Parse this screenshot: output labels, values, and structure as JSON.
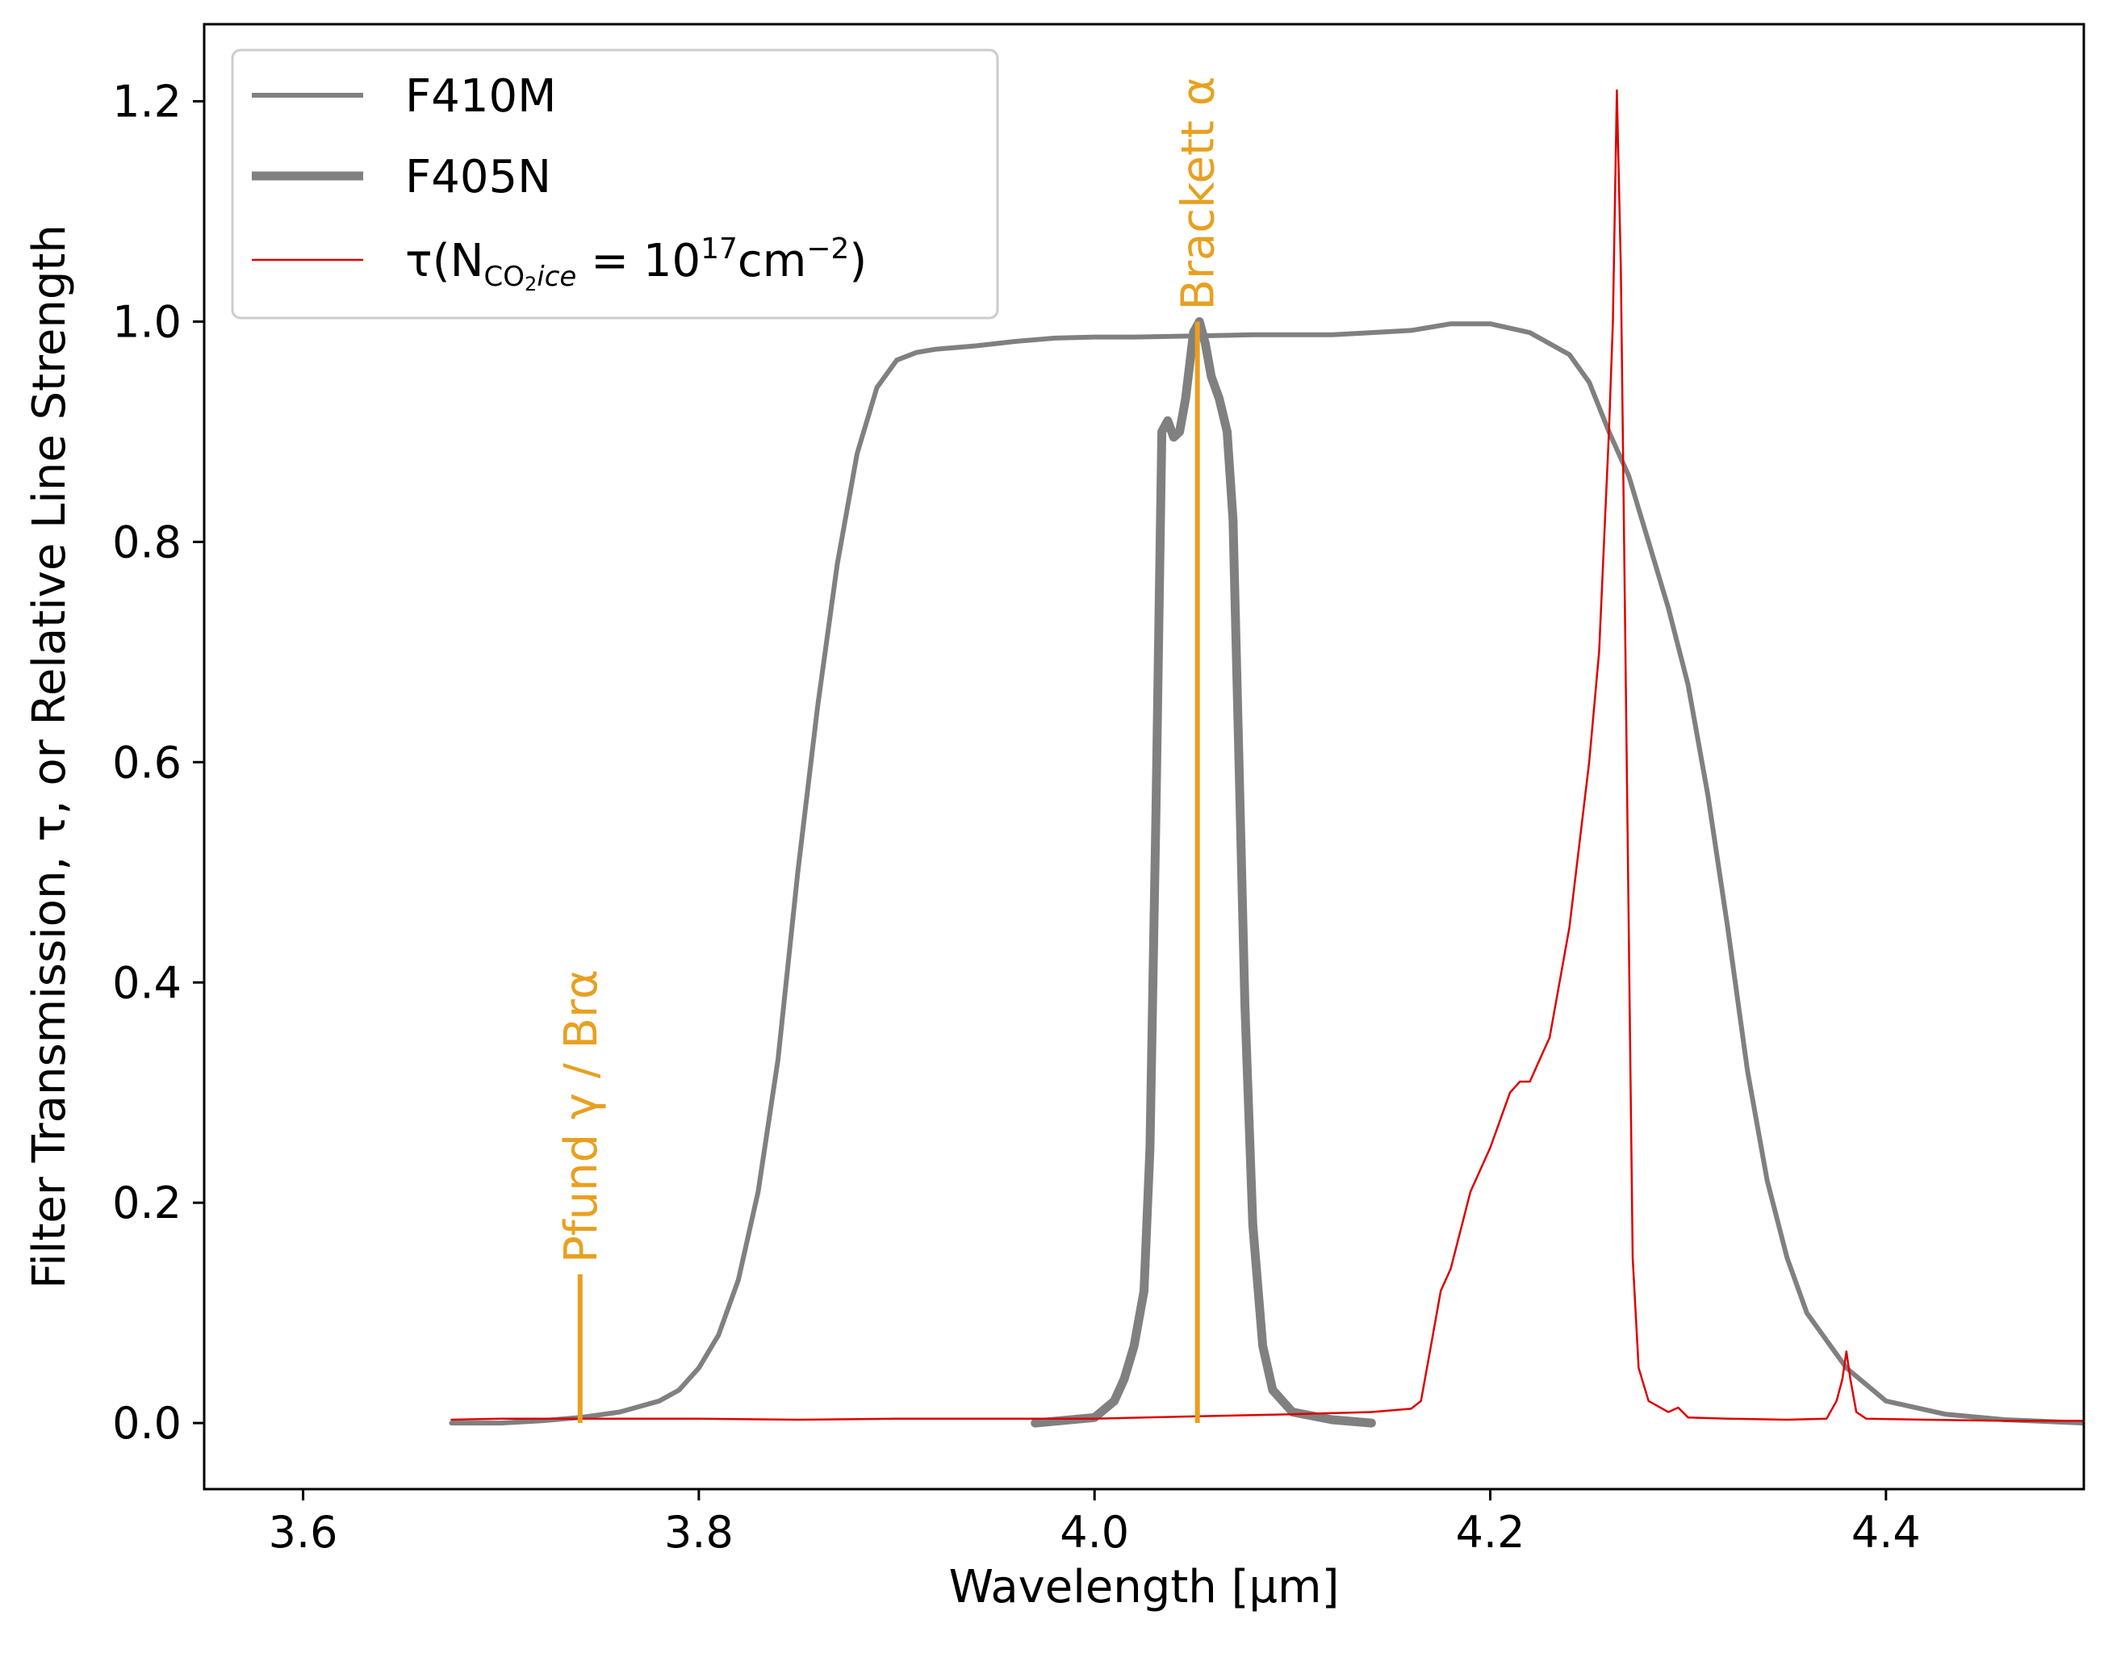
{
  "chart_data": {
    "type": "line",
    "xlabel": "Wavelength [μm]",
    "ylabel": "Filter Transmission, τ, or Relative Line Strength",
    "xlim": [
      3.55,
      4.5
    ],
    "ylim": [
      -0.06,
      1.27
    ],
    "xticks": [
      {
        "value": 3.6,
        "label": "3.6"
      },
      {
        "value": 3.8,
        "label": "3.8"
      },
      {
        "value": 4.0,
        "label": "4.0"
      },
      {
        "value": 4.2,
        "label": "4.2"
      },
      {
        "value": 4.4,
        "label": "4.4"
      }
    ],
    "yticks": [
      {
        "value": 0.0,
        "label": "0.0"
      },
      {
        "value": 0.2,
        "label": "0.2"
      },
      {
        "value": 0.4,
        "label": "0.4"
      },
      {
        "value": 0.6,
        "label": "0.6"
      },
      {
        "value": 0.8,
        "label": "0.8"
      },
      {
        "value": 1.0,
        "label": "1.0"
      },
      {
        "value": 1.2,
        "label": "1.2"
      }
    ],
    "grid": false,
    "legend_position": "top-left",
    "series": [
      {
        "name": "F410M",
        "color": "#808080",
        "x": [
          3.675,
          3.7,
          3.72,
          3.74,
          3.76,
          3.78,
          3.79,
          3.8,
          3.81,
          3.82,
          3.83,
          3.84,
          3.85,
          3.86,
          3.87,
          3.88,
          3.89,
          3.9,
          3.91,
          3.92,
          3.94,
          3.96,
          3.98,
          4.0,
          4.02,
          4.05,
          4.08,
          4.1,
          4.12,
          4.14,
          4.16,
          4.18,
          4.2,
          4.22,
          4.24,
          4.25,
          4.26,
          4.27,
          4.28,
          4.29,
          4.3,
          4.31,
          4.32,
          4.33,
          4.34,
          4.35,
          4.36,
          4.38,
          4.4,
          4.43,
          4.46,
          4.5
        ],
        "y": [
          0.0,
          0.0,
          0.002,
          0.005,
          0.01,
          0.02,
          0.03,
          0.05,
          0.08,
          0.13,
          0.21,
          0.33,
          0.5,
          0.65,
          0.78,
          0.88,
          0.94,
          0.965,
          0.972,
          0.975,
          0.978,
          0.982,
          0.985,
          0.986,
          0.986,
          0.987,
          0.988,
          0.988,
          0.988,
          0.99,
          0.992,
          0.998,
          0.998,
          0.99,
          0.97,
          0.945,
          0.9,
          0.86,
          0.8,
          0.74,
          0.67,
          0.57,
          0.45,
          0.32,
          0.22,
          0.15,
          0.1,
          0.05,
          0.02,
          0.008,
          0.003,
          0.0
        ]
      },
      {
        "name": "F405N",
        "color": "#808080",
        "x": [
          3.97,
          4.0,
          4.01,
          4.015,
          4.02,
          4.025,
          4.028,
          4.031,
          4.034,
          4.037,
          4.04,
          4.043,
          4.046,
          4.05,
          4.053,
          4.056,
          4.059,
          4.063,
          4.067,
          4.07,
          4.073,
          4.076,
          4.08,
          4.085,
          4.09,
          4.1,
          4.12,
          4.14
        ],
        "y": [
          0.0,
          0.005,
          0.02,
          0.04,
          0.07,
          0.12,
          0.25,
          0.55,
          0.9,
          0.91,
          0.895,
          0.9,
          0.93,
          0.99,
          1.0,
          0.98,
          0.95,
          0.93,
          0.9,
          0.82,
          0.6,
          0.38,
          0.18,
          0.07,
          0.03,
          0.01,
          0.003,
          0.0
        ]
      },
      {
        "name": "τ(N_CO2ice = 10^17 cm^-2)",
        "color": "#dd0000",
        "x": [
          3.675,
          3.7,
          3.75,
          3.8,
          3.85,
          3.9,
          3.95,
          4.0,
          4.05,
          4.1,
          4.14,
          4.16,
          4.165,
          4.17,
          4.175,
          4.18,
          4.19,
          4.2,
          4.21,
          4.215,
          4.22,
          4.225,
          4.23,
          4.24,
          4.25,
          4.255,
          4.26,
          4.262,
          4.264,
          4.266,
          4.268,
          4.27,
          4.272,
          4.275,
          4.28,
          4.29,
          4.295,
          4.3,
          4.32,
          4.35,
          4.37,
          4.375,
          4.378,
          4.38,
          4.382,
          4.385,
          4.39,
          4.42,
          4.46,
          4.5
        ],
        "y": [
          0.003,
          0.004,
          0.004,
          0.004,
          0.003,
          0.004,
          0.004,
          0.004,
          0.006,
          0.008,
          0.01,
          0.013,
          0.02,
          0.07,
          0.12,
          0.14,
          0.21,
          0.25,
          0.3,
          0.31,
          0.31,
          0.33,
          0.35,
          0.45,
          0.6,
          0.7,
          0.9,
          1.0,
          1.21,
          1.05,
          0.75,
          0.45,
          0.15,
          0.05,
          0.02,
          0.01,
          0.014,
          0.005,
          0.004,
          0.003,
          0.004,
          0.02,
          0.04,
          0.065,
          0.04,
          0.01,
          0.004,
          0.003,
          0.002,
          0.002
        ]
      }
    ],
    "legend": [
      {
        "label": "F410M",
        "series": 0
      },
      {
        "label": "F405N",
        "series": 1
      },
      {
        "label_parts": {
          "tau": "τ(N",
          "sub": "CO",
          "sub2": "2",
          "sub3": "ice",
          "eq": " = 10",
          "sup": "17",
          "unit": "cm",
          "sup2": "−2",
          "close": ")"
        },
        "series": 2
      }
    ],
    "annotations": [
      {
        "name": "brackett-alpha",
        "label": "Brackett α",
        "x": 4.052,
        "y0": 0.0,
        "y1": 1.0,
        "color": "#e8a020"
      },
      {
        "name": "pfund-gamma",
        "label": "Pfund γ / Brα",
        "x": 3.74,
        "y0": 0.0,
        "y1": 0.135,
        "color": "#e8a020"
      }
    ]
  }
}
